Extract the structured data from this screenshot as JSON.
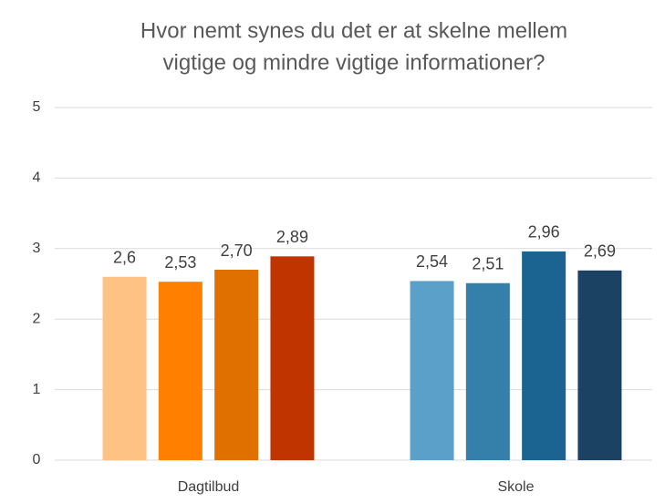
{
  "chart_data": {
    "type": "bar",
    "title_lines": [
      "Hvor nemt synes du det er at skelne mellem",
      "vigtige og mindre vigtige informationer?"
    ],
    "categories": [
      "Dagtilbud",
      "Skole"
    ],
    "values": [
      [
        2.6,
        2.53,
        2.7,
        2.89
      ],
      [
        2.54,
        2.51,
        2.96,
        2.69
      ]
    ],
    "value_labels": [
      [
        "2,6",
        "2,53",
        "2,70",
        "2,89"
      ],
      [
        "2,54",
        "2,51",
        "2,96",
        "2,69"
      ]
    ],
    "colors": [
      [
        "#ffc285",
        "#ff8000",
        "#e07000",
        "#c03400"
      ],
      [
        "#5aa0c8",
        "#3580aa",
        "#1b6391",
        "#1b4262"
      ]
    ],
    "ylim": [
      0,
      5
    ],
    "yticks": [
      0,
      1,
      2,
      3,
      4,
      5
    ],
    "grid": true
  }
}
